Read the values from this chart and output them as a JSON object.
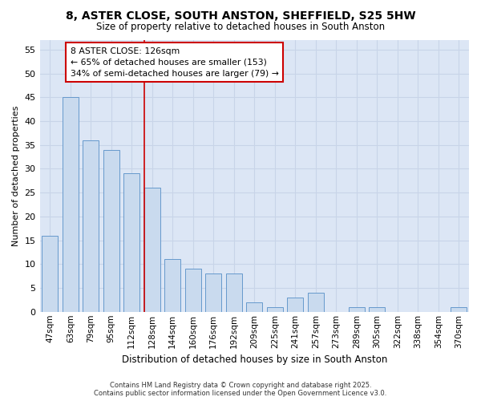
{
  "title_line1": "8, ASTER CLOSE, SOUTH ANSTON, SHEFFIELD, S25 5HW",
  "title_line2": "Size of property relative to detached houses in South Anston",
  "xlabel": "Distribution of detached houses by size in South Anston",
  "ylabel": "Number of detached properties",
  "categories": [
    "47sqm",
    "63sqm",
    "79sqm",
    "95sqm",
    "112sqm",
    "128sqm",
    "144sqm",
    "160sqm",
    "176sqm",
    "192sqm",
    "209sqm",
    "225sqm",
    "241sqm",
    "257sqm",
    "273sqm",
    "289sqm",
    "305sqm",
    "322sqm",
    "338sqm",
    "354sqm",
    "370sqm"
  ],
  "values": [
    16,
    45,
    36,
    34,
    29,
    26,
    11,
    9,
    8,
    8,
    2,
    1,
    3,
    4,
    0,
    1,
    1,
    0,
    0,
    0,
    1
  ],
  "bar_color": "#c9daee",
  "bar_edge_color": "#6699cc",
  "highlight_line_color": "#cc0000",
  "annotation_text": "8 ASTER CLOSE: 126sqm\n← 65% of detached houses are smaller (153)\n34% of semi-detached houses are larger (79) →",
  "annotation_box_facecolor": "#ffffff",
  "annotation_box_edgecolor": "#cc0000",
  "ylim": [
    0,
    57
  ],
  "yticks": [
    0,
    5,
    10,
    15,
    20,
    25,
    30,
    35,
    40,
    45,
    50,
    55
  ],
  "grid_color": "#c8d4e8",
  "plot_bg_color": "#dce6f5",
  "fig_bg_color": "#ffffff",
  "footer_text": "Contains HM Land Registry data © Crown copyright and database right 2025.\nContains public sector information licensed under the Open Government Licence v3.0."
}
